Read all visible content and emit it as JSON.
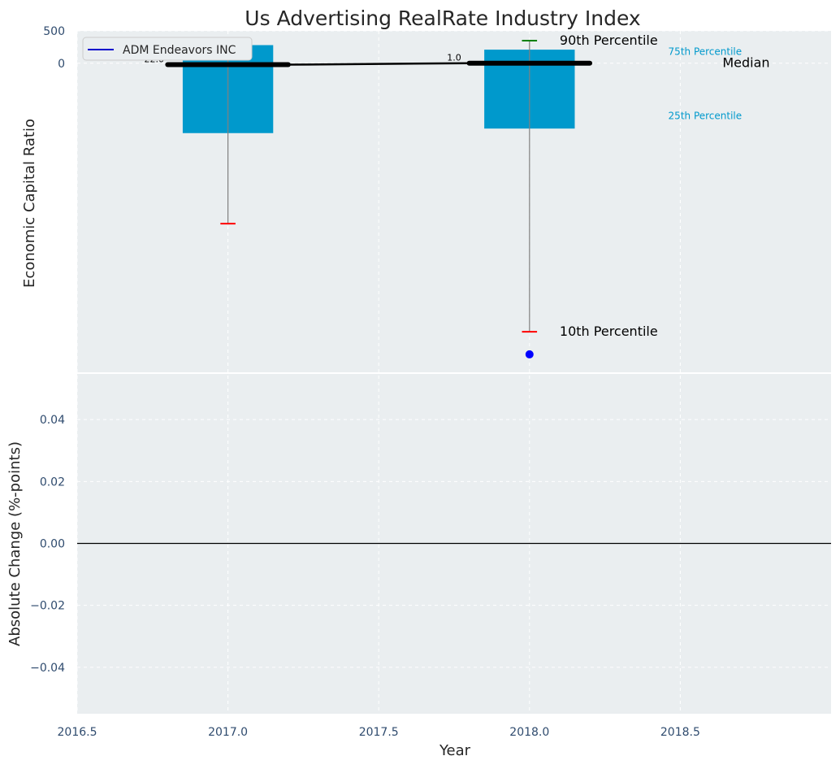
{
  "chart_data": {
    "type": "box",
    "title": "Us Advertising RealRate Industry Index",
    "xlabel": "Year",
    "x_ticks": [
      "2016.5",
      "2017.0",
      "2017.5",
      "2018.0",
      "2018.5"
    ],
    "xlim": [
      2016.5,
      2019.0
    ],
    "grid": true,
    "legend": {
      "position": "top-left",
      "entries": [
        {
          "label": "ADM Endeavors INC",
          "color": "#0000cc"
        }
      ]
    },
    "top_panel": {
      "ylabel": "Economic Capital Ratio",
      "y_ticks": [
        "500",
        "0"
      ],
      "ylim": [
        -4790,
        500
      ],
      "boxes": [
        {
          "x": 2017,
          "p10": -2480,
          "p25": -1080,
          "median": -22,
          "p75": 280,
          "p90": 390
        },
        {
          "x": 2018,
          "p10": -4150,
          "p25": -1010,
          "median": 1,
          "p75": 210,
          "p90": 350
        }
      ],
      "median_labels": [
        {
          "x": 2017,
          "y": -22,
          "text": "-22.0"
        },
        {
          "x": 2018,
          "y": 1,
          "text": "1.0"
        }
      ],
      "company_series": {
        "name": "ADM Endeavors INC",
        "points": [
          {
            "x": 2018,
            "y": -4500
          }
        ]
      },
      "percentile_legend": [
        {
          "text": "90th Percentile",
          "color": "#000000"
        },
        {
          "text": "75th Percentile",
          "color": "#0099cc"
        },
        {
          "text": "Median",
          "color": "#000000"
        },
        {
          "text": "25th Percentile",
          "color": "#0099cc"
        },
        {
          "text": "10th Percentile",
          "color": "#000000"
        }
      ]
    },
    "bottom_panel": {
      "ylabel": "Absolute Change (%-points)",
      "y_ticks": [
        "0.04",
        "0.02",
        "0.00",
        "−0.02",
        "−0.04"
      ],
      "ylim": [
        -0.055,
        0.055
      ],
      "baseline": 0
    },
    "colors": {
      "box": "#0099cc",
      "median": "#000000",
      "whisker": "#808080",
      "p90_cap": "#008000",
      "p10_cap": "#ff0000",
      "company": "#0000ff",
      "panel_bg": "#eaeef0"
    }
  }
}
